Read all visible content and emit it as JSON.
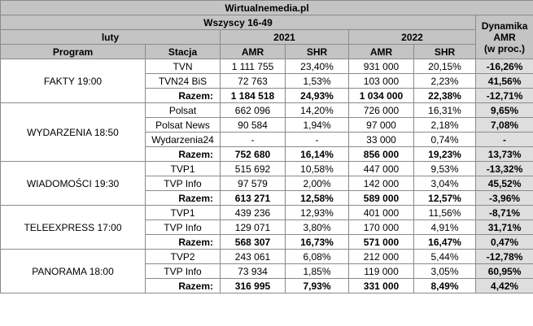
{
  "header": {
    "title": "Wirtualnemedia.pl",
    "audience": "Wszyscy 16-49",
    "month": "luty",
    "years": [
      "2021",
      "2022"
    ],
    "columns": [
      "Program",
      "Stacja",
      "AMR",
      "SHR",
      "AMR",
      "SHR"
    ],
    "dynamics": [
      "Dynamika",
      "AMR",
      "(w proc.)"
    ]
  },
  "groups": [
    {
      "program": "FAKTY 19:00",
      "rows": [
        [
          "TVN",
          "1 111 755",
          "23,40%",
          "931 000",
          "20,15%",
          "-16,26%"
        ],
        [
          "TVN24 BiS",
          "72 763",
          "1,53%",
          "103 000",
          "2,23%",
          "41,56%"
        ],
        [
          "Razem:",
          "1 184 518",
          "24,93%",
          "1 034 000",
          "22,38%",
          "-12,71%"
        ]
      ]
    },
    {
      "program": "WYDARZENIA 18:50",
      "rows": [
        [
          "Polsat",
          "662 096",
          "14,20%",
          "726 000",
          "16,31%",
          "9,65%"
        ],
        [
          "Polsat News",
          "90 584",
          "1,94%",
          "97 000",
          "2,18%",
          "7,08%"
        ],
        [
          "Wydarzenia24",
          "-",
          "-",
          "33 000",
          "0,74%",
          "-"
        ],
        [
          "Razem:",
          "752 680",
          "16,14%",
          "856 000",
          "19,23%",
          "13,73%"
        ]
      ]
    },
    {
      "program": "WIADOMOŚCI 19:30",
      "rows": [
        [
          "TVP1",
          "515 692",
          "10,58%",
          "447 000",
          "9,53%",
          "-13,32%"
        ],
        [
          "TVP Info",
          "97 579",
          "2,00%",
          "142 000",
          "3,04%",
          "45,52%"
        ],
        [
          "Razem:",
          "613 271",
          "12,58%",
          "589 000",
          "12,57%",
          "-3,96%"
        ]
      ]
    },
    {
      "program": "TELEEXPRESS 17:00",
      "rows": [
        [
          "TVP1",
          "439 236",
          "12,93%",
          "401 000",
          "11,56%",
          "-8,71%"
        ],
        [
          "TVP Info",
          "129 071",
          "3,80%",
          "170 000",
          "4,91%",
          "31,71%"
        ],
        [
          "Razem:",
          "568 307",
          "16,73%",
          "571 000",
          "16,47%",
          "0,47%"
        ]
      ]
    },
    {
      "program": "PANORAMA 18:00",
      "rows": [
        [
          "TVP2",
          "243 061",
          "6,08%",
          "212 000",
          "5,44%",
          "-12,78%"
        ],
        [
          "TVP Info",
          "73 934",
          "1,85%",
          "119 000",
          "3,05%",
          "60,95%"
        ],
        [
          "Razem:",
          "316 995",
          "7,93%",
          "331 000",
          "8,49%",
          "4,42%"
        ]
      ]
    }
  ]
}
